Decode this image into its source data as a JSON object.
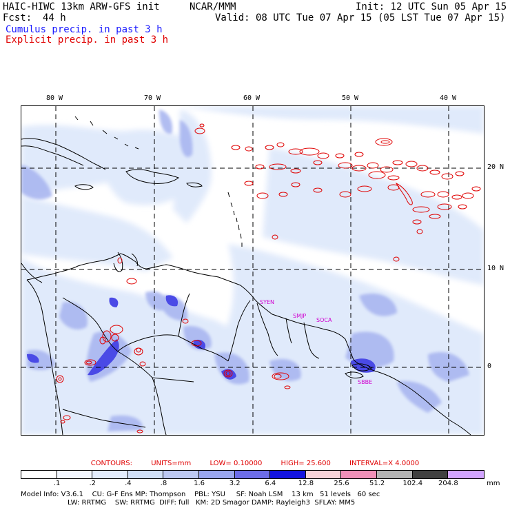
{
  "header": {
    "model": "HAIC-HIWC 13km ARW-GFS init",
    "org": "NCAR/MMM",
    "init": "Init: 12 UTC Sun 05 Apr 15",
    "fcst_label": "Fcst:",
    "fcst_value": "44 h",
    "valid": "Valid: 08 UTC Tue 07 Apr 15 (05 LST Tue 07 Apr 15)",
    "field1": "Cumulus precip. in past 3 h",
    "field2": "Explicit precip. in past 3 h"
  },
  "map": {
    "lon_labels": [
      "80 W",
      "70 W",
      "60 W",
      "50 W",
      "40 W"
    ],
    "lat_labels": [
      "20 N",
      "10 N",
      "0"
    ],
    "stations": [
      "SYEN",
      "SMJP",
      "SOCA",
      "SBBE"
    ],
    "colors": {
      "cumulus_light": "#dfe9fb",
      "cumulus_mid": "#a9b6f0",
      "cumulus_dark": "#5a5ae6",
      "cumulus_max": "#1010e0",
      "explicit_contour": "#e00000",
      "coast": "#000000"
    }
  },
  "contours": {
    "label": "CONTOURS:",
    "units": "UNITS=mm",
    "low": "LOW= 0.10000",
    "high": "HIGH= 25.600",
    "interval": "INTERVAL=X 4.0000"
  },
  "colorbar": {
    "labels": [
      ".1",
      ".2",
      ".4",
      ".8",
      "1.6",
      "3.2",
      "6.4",
      "12.8",
      "25.6",
      "51.2",
      "102.4",
      "204.8"
    ],
    "unit": "mm",
    "colors": [
      "#ffffff",
      "#f3f7ff",
      "#e3ecfc",
      "#d1e0f8",
      "#bcc8f2",
      "#9aa6ee",
      "#6c6ce8",
      "#1414e0",
      "#f8d2d8",
      "#f090b8",
      "#b4b4b4",
      "#404040",
      "#d2a4ff"
    ]
  },
  "model_info": {
    "line1": "Model Info: V3.6.1    CU: G-F Ens MP: Thompson    PBL: YSU     SF: Noah LSM    13 km   51 levels   60 sec",
    "line2": "LW: RRTMG    SW: RRTMG  DIFF: full   KM: 2D Smagor DAMP: Rayleigh3  SFLAY: MM5"
  }
}
